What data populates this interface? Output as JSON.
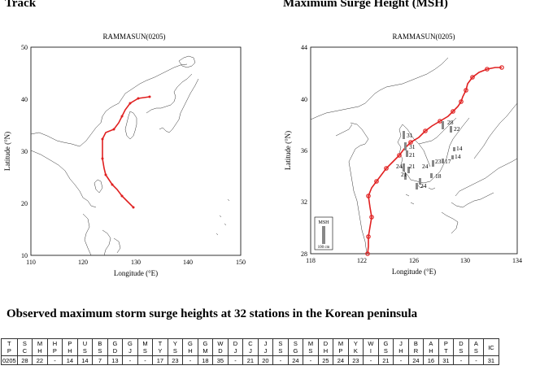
{
  "headers": {
    "left": "Track",
    "right": "Maximum Surge Height (MSH)"
  },
  "left_map": {
    "title": "RAMMASUN(0205)",
    "xlabel": "Longitude (°E)",
    "ylabel": "Latitude (°N)",
    "xticks": [
      "110",
      "120",
      "130",
      "140",
      "150"
    ],
    "yticks": [
      "10",
      "20",
      "30",
      "40",
      "50"
    ],
    "track_color": "#e02020"
  },
  "right_map": {
    "title": "RAMMASUN(0205)",
    "xlabel": "Longitude (°E)",
    "ylabel": "Latitude (°N)",
    "xticks": [
      "118",
      "122",
      "126",
      "130",
      "134"
    ],
    "yticks": [
      "28",
      "32",
      "36",
      "40",
      "44"
    ],
    "legend_title": "MSH",
    "legend_scale": "100 cm",
    "track_color": "#e02020",
    "surge_labels": [
      "31",
      "31",
      "21",
      "24",
      "21",
      "21",
      "28",
      "22",
      "23",
      "17",
      "14",
      "14",
      "24",
      "18",
      "24"
    ]
  },
  "caption": "Observed maximum storm surge heights at 32 stations in the Korean peninsula",
  "table": {
    "headers": [
      [
        "T",
        "P"
      ],
      [
        "S",
        "C"
      ],
      [
        "M",
        "H"
      ],
      [
        "H",
        "P"
      ],
      [
        "P",
        "H"
      ],
      [
        "U",
        "S"
      ],
      [
        "B",
        "S"
      ],
      [
        "G",
        "D"
      ],
      [
        "G",
        "J"
      ],
      [
        "M",
        "S"
      ],
      [
        "T",
        "Y"
      ],
      [
        "Y",
        "S"
      ],
      [
        "G",
        "H"
      ],
      [
        "G",
        "M"
      ],
      [
        "W",
        "D"
      ],
      [
        "D",
        "J"
      ],
      [
        "C",
        "J"
      ],
      [
        "J",
        "J"
      ],
      [
        "S",
        "S"
      ],
      [
        "S",
        "G"
      ],
      [
        "M",
        "S"
      ],
      [
        "D",
        "H"
      ],
      [
        "M",
        "P"
      ],
      [
        "Y",
        "K"
      ],
      [
        "W",
        "I"
      ],
      [
        "G",
        "S"
      ],
      [
        "J",
        "H"
      ],
      [
        "B",
        "R"
      ],
      [
        "A",
        "H"
      ],
      [
        "P",
        "T"
      ],
      [
        "D",
        "S"
      ],
      [
        "A",
        "S"
      ],
      [
        "IC",
        ""
      ]
    ],
    "values": [
      "0205",
      "28",
      "22",
      "-",
      "14",
      "14",
      "7",
      "13",
      "-",
      "-",
      "17",
      "23",
      "-",
      "18",
      "35",
      "-",
      "21",
      "20",
      "-",
      "24",
      "-",
      "25",
      "24",
      "23",
      "-",
      "21",
      "-",
      "24",
      "16",
      "31",
      "-",
      "-",
      "31"
    ]
  }
}
